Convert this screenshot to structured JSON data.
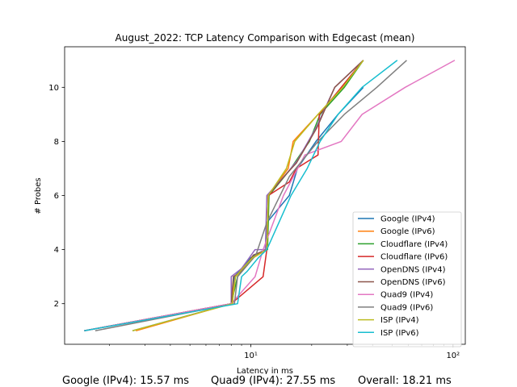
{
  "chart_data": {
    "type": "line",
    "title": "August_2022: TCP Latency Comparison with Edgecast (mean)",
    "xlabel": "Latency in ms",
    "ylabel": "# Probes",
    "xscale": "log",
    "xlim": [
      1.2,
      115
    ],
    "ylim": [
      0.5,
      11.5
    ],
    "x_tick_labels": [
      {
        "value": 10,
        "label": "10¹"
      },
      {
        "value": 100,
        "label": "10²"
      }
    ],
    "y_ticks": [
      2,
      4,
      6,
      8,
      10
    ],
    "grid": false,
    "legend_position": "lower-right",
    "series": [
      {
        "name": "Google (IPv4)",
        "color": "#1f77b4",
        "x": [
          2.6,
          8.0,
          8.3,
          9.0,
          10.0,
          11.8,
          12.0,
          15.5,
          17.0,
          21.0,
          27.0,
          36.0
        ],
        "y": [
          1,
          2,
          3,
          3.3,
          3.7,
          4,
          5,
          6,
          7,
          8,
          9,
          10
        ]
      },
      {
        "name": "Google (IPv6)",
        "color": "#ff7f0e",
        "x": [
          2.7,
          8.0,
          8.4,
          9.2,
          10.3,
          12.0,
          12.2,
          15.3,
          16.2,
          21.5,
          28.5,
          36.0
        ],
        "y": [
          1,
          2,
          3,
          3.3,
          3.7,
          4,
          6,
          7,
          8,
          9,
          10,
          11
        ]
      },
      {
        "name": "Cloudflare (IPv4)",
        "color": "#2ca02c",
        "x": [
          1.5,
          8.0,
          8.6,
          9.3,
          10.6,
          12.1,
          12.3,
          15.8,
          17.5,
          19.5,
          22.0,
          29.0,
          36.0
        ],
        "y": [
          1,
          2,
          3,
          3.3,
          3.8,
          4,
          6,
          7,
          7.5,
          8,
          9,
          10,
          11
        ]
      },
      {
        "name": "Cloudflare (IPv6)",
        "color": "#d62728",
        "x": [
          1.5,
          8.0,
          11.5,
          12.0,
          12.2,
          15.5,
          16.8,
          21.5,
          21.8,
          28.0,
          36.0
        ],
        "y": [
          1,
          2,
          3,
          4,
          6,
          6.5,
          7,
          7.5,
          9,
          10,
          11
        ]
      },
      {
        "name": "OpenDNS (IPv4)",
        "color": "#9467bd",
        "x": [
          1.5,
          8.0,
          8.0,
          9.0,
          10.5,
          11.8,
          12.0,
          15.0,
          17.0,
          21.0,
          26.0,
          36.0
        ],
        "y": [
          1,
          2,
          3,
          3.3,
          4,
          4,
          6,
          6.8,
          7.3,
          8.5,
          10,
          11
        ]
      },
      {
        "name": "OpenDNS (IPv6)",
        "color": "#8c564b",
        "x": [
          1.5,
          8.0,
          8.2,
          9.0,
          10.3,
          12.0,
          12.2,
          15.0,
          16.8,
          21.2,
          26.0,
          36.0
        ],
        "y": [
          1,
          2,
          3,
          3.2,
          3.8,
          4,
          6,
          6.8,
          7.2,
          8.5,
          10,
          11
        ]
      },
      {
        "name": "Quad9 (IPv4)",
        "color": "#e377c2",
        "x": [
          1.5,
          8.0,
          10.5,
          11.5,
          14.5,
          18.5,
          28.0,
          35.5,
          58.0,
          102.0
        ],
        "y": [
          1,
          2,
          3,
          4,
          6,
          7.5,
          8,
          9,
          10,
          11
        ]
      },
      {
        "name": "Quad9 (IPv6)",
        "color": "#7f7f7f",
        "x": [
          1.7,
          8.3,
          8.6,
          9.3,
          10.6,
          12.0,
          15.5,
          18.0,
          21.5,
          29.0,
          42.0,
          59.0
        ],
        "y": [
          1,
          2,
          3,
          3.3,
          3.8,
          5,
          6.7,
          7.3,
          8,
          9,
          10,
          11
        ]
      },
      {
        "name": "ISP (IPv4)",
        "color": "#bcbd22",
        "x": [
          2.6,
          8.1,
          8.4,
          9.1,
          10.2,
          12.0,
          12.2,
          15.0,
          16.5,
          21.5,
          28.5,
          36.0
        ],
        "y": [
          1,
          2,
          3,
          3.3,
          3.7,
          4,
          6,
          7,
          8,
          9,
          10,
          11
        ]
      },
      {
        "name": "ISP (IPv6)",
        "color": "#17becf",
        "x": [
          1.5,
          8.6,
          9.0,
          9.6,
          10.9,
          12.0,
          15.8,
          19.0,
          22.0,
          27.0,
          35.5,
          53.0
        ],
        "y": [
          1,
          2,
          3,
          3.2,
          3.7,
          4,
          6,
          7,
          8,
          9,
          10,
          11
        ]
      }
    ]
  },
  "footer": {
    "left": "Google (IPv4): 15.57 ms",
    "middle": "Quad9 (IPv4): 27.55 ms",
    "right": "Overall: 18.21 ms"
  }
}
